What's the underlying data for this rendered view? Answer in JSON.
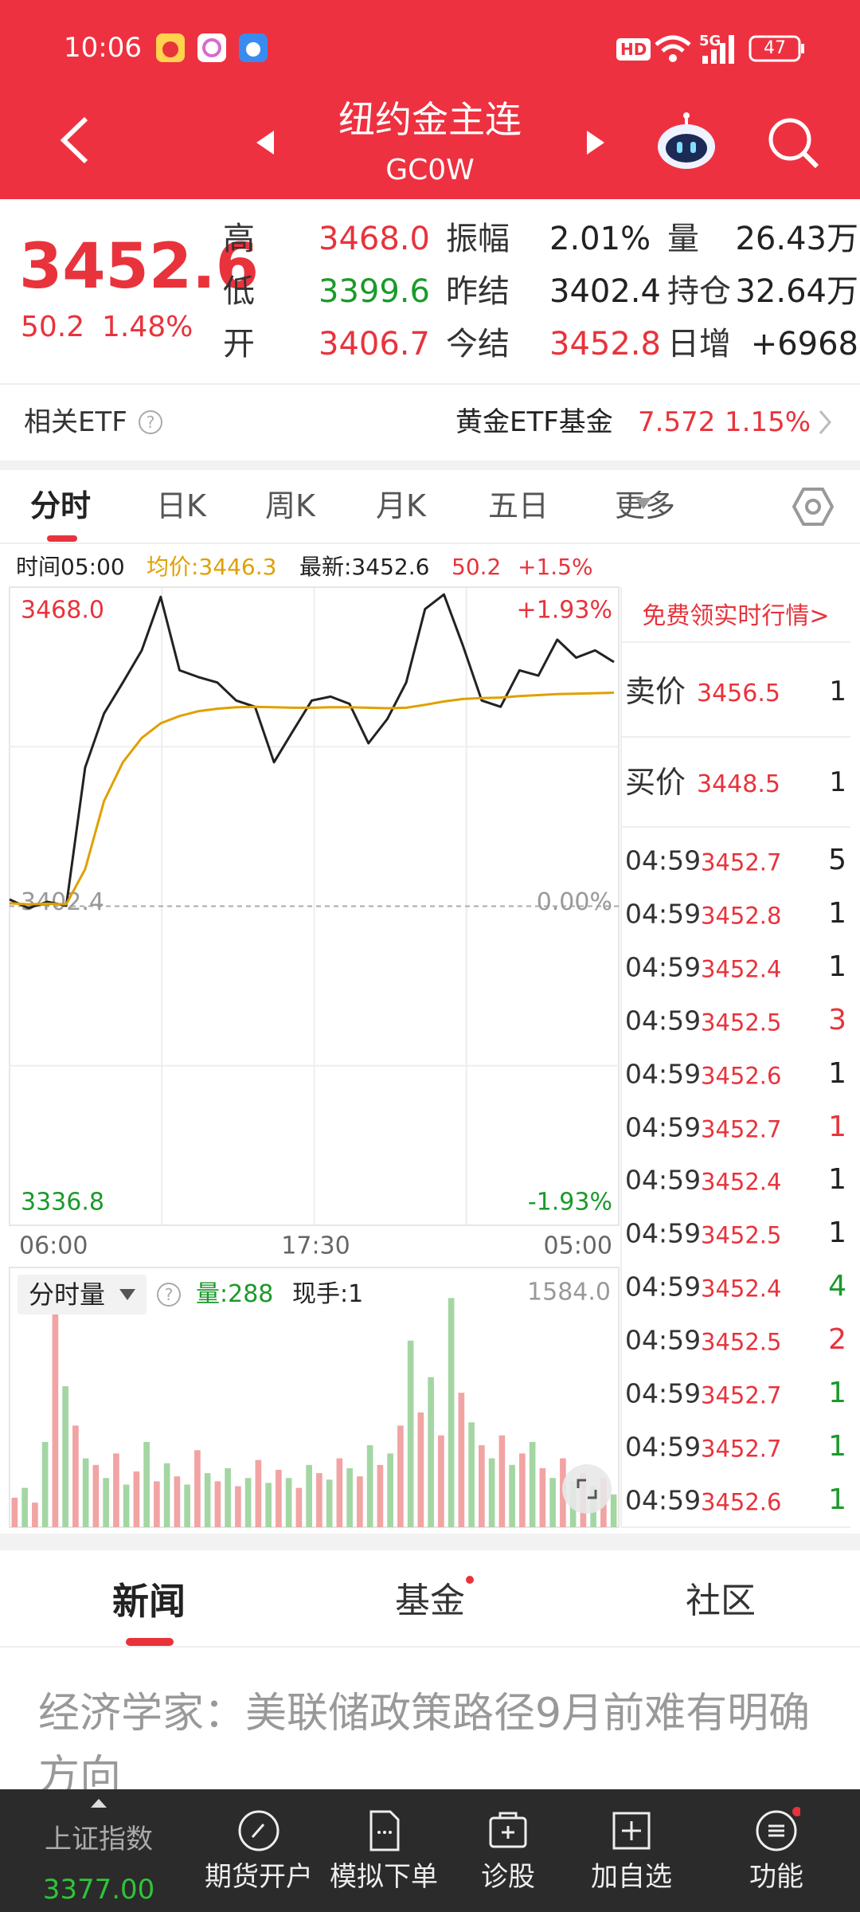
{
  "status_bar": {
    "time": "10:06",
    "hd": "HD",
    "network": "5G",
    "battery": "47"
  },
  "header": {
    "title": "纽约金主连",
    "code": "GC0W"
  },
  "quote": {
    "price": "3452.6",
    "change": "50.2",
    "change_pct": "1.48%",
    "stats": [
      [
        {
          "label": "高",
          "value": "3468.0",
          "color": "#e8333c"
        },
        {
          "label": "振幅",
          "value": "2.01%",
          "color": "#222222"
        },
        {
          "label": "量",
          "value": "26.43万",
          "color": "#222222"
        }
      ],
      [
        {
          "label": "低",
          "value": "3399.6",
          "color": "#1a9a2a"
        },
        {
          "label": "昨结",
          "value": "3402.4",
          "color": "#222222"
        },
        {
          "label": "持仓",
          "value": "32.64万",
          "color": "#222222"
        }
      ],
      [
        {
          "label": "开",
          "value": "3406.7",
          "color": "#e8333c"
        },
        {
          "label": "今结",
          "value": "3452.8",
          "color": "#e8333c"
        },
        {
          "label": "日增",
          "value": "+6968",
          "color": "#222222"
        }
      ]
    ]
  },
  "etf": {
    "label": "相关ETF",
    "name": "黄金ETF基金",
    "price": "7.572",
    "change_pct": "1.15%"
  },
  "tabs": [
    "分时",
    "日K",
    "周K",
    "月K",
    "五日",
    "更多"
  ],
  "info": {
    "time": "时间05:00",
    "avg": "均价:3446.3",
    "latest": "最新:3452.6",
    "change": "50.2",
    "change_pct": "+1.5%"
  },
  "chart_data": [
    {
      "type": "line",
      "ylim": [
        3336.8,
        3468.0
      ],
      "yticks": [
        {
          "value": 3468.0,
          "label": "3468.0"
        },
        3402.4,
        3336.8
      ],
      "y2lim": [
        -1.93,
        1.93
      ],
      "y2ticks": [
        {
          "value": 1.93,
          "label": "+1.93%"
        },
        {
          "value": 0,
          "label": "0.00%"
        },
        {
          "value": -1.93,
          "label": "-1.93%"
        }
      ],
      "xtick_labels": [
        "06:00",
        "17:30",
        "05:00"
      ],
      "series": [
        {
          "color": "#222222",
          "values": [
            3403.8,
            3402.0,
            3403.3,
            3402.5,
            3430.9,
            3442.0,
            3448.4,
            3455.0,
            3466.0,
            3450.9,
            3449.5,
            3448.4,
            3444.7,
            3443.4,
            3432.0,
            3438.4,
            3444.7,
            3445.5,
            3444.0,
            3435.9,
            3440.9,
            3448.4,
            3463.5,
            3466.5,
            3456.0,
            3444.7,
            3443.4,
            3450.9,
            3449.8,
            3457.2,
            3453.5,
            3455.0,
            3452.6
          ]
        },
        {
          "color": "#e0a000",
          "values": [
            3403.0,
            3402.8,
            3402.9,
            3402.8,
            3410.0,
            3424.0,
            3432.0,
            3437.0,
            3440.0,
            3441.5,
            3442.5,
            3443.0,
            3443.3,
            3443.4,
            3443.3,
            3443.2,
            3443.2,
            3443.3,
            3443.3,
            3443.2,
            3443.1,
            3443.2,
            3443.8,
            3444.5,
            3445.0,
            3445.2,
            3445.3,
            3445.6,
            3445.8,
            3446.0,
            3446.1,
            3446.2,
            3446.3
          ]
        }
      ]
    },
    {
      "type": "bar",
      "title": "分时量",
      "annotations": [
        "量:288",
        "现手:1"
      ],
      "ylim": [
        0,
        1584
      ],
      "yticks": [
        {
          "value": 1584,
          "label": "1584.0"
        }
      ],
      "colors": [
        "#f2a3a3",
        "#a3d6a3"
      ],
      "values": [
        180,
        240,
        150,
        520,
        1398,
        860,
        620,
        420,
        380,
        300,
        450,
        260,
        340,
        520,
        280,
        390,
        310,
        260,
        470,
        330,
        280,
        360,
        250,
        300,
        410,
        270,
        350,
        300,
        240,
        380,
        330,
        290,
        420,
        360,
        310,
        500,
        380,
        450,
        620,
        1138,
        700,
        915,
        560,
        1398,
        820,
        640,
        500,
        420,
        560,
        380,
        450,
        520,
        360,
        300,
        420,
        280,
        330,
        250,
        300,
        200
      ]
    }
  ],
  "order_book": {
    "promo": "免费领实时行情>",
    "ask_label": "卖价",
    "ask": "3456.5",
    "ask_vol": "1",
    "bid_label": "买价",
    "bid": "3448.5",
    "bid_vol": "1",
    "trades": [
      {
        "time": "04:59",
        "price": "3452.7",
        "volume": "5",
        "color": "#222222"
      },
      {
        "time": "04:59",
        "price": "3452.8",
        "volume": "1",
        "color": "#222222"
      },
      {
        "time": "04:59",
        "price": "3452.4",
        "volume": "1",
        "color": "#222222"
      },
      {
        "time": "04:59",
        "price": "3452.5",
        "volume": "3",
        "color": "#e8333c"
      },
      {
        "time": "04:59",
        "price": "3452.6",
        "volume": "1",
        "color": "#222222"
      },
      {
        "time": "04:59",
        "price": "3452.7",
        "volume": "1",
        "color": "#e8333c"
      },
      {
        "time": "04:59",
        "price": "3452.4",
        "volume": "1",
        "color": "#222222"
      },
      {
        "time": "04:59",
        "price": "3452.5",
        "volume": "1",
        "color": "#222222"
      },
      {
        "time": "04:59",
        "price": "3452.4",
        "volume": "4",
        "color": "#1a9a2a"
      },
      {
        "time": "04:59",
        "price": "3452.5",
        "volume": "2",
        "color": "#e8333c"
      },
      {
        "time": "04:59",
        "price": "3452.7",
        "volume": "1",
        "color": "#1a9a2a"
      },
      {
        "time": "04:59",
        "price": "3452.7",
        "volume": "1",
        "color": "#1a9a2a"
      },
      {
        "time": "04:59",
        "price": "3452.6",
        "volume": "1",
        "color": "#1a9a2a"
      }
    ]
  },
  "news_tabs": [
    "新闻",
    "基金",
    "社区"
  ],
  "news": {
    "headline": "经济学家：美联储政策路径9月前难有明确方向"
  },
  "bottom_nav": {
    "index_name": "上证指数",
    "index_value": "3377.00",
    "items": [
      "期货开户",
      "模拟下单",
      "诊股",
      "加自选",
      "功能"
    ]
  }
}
